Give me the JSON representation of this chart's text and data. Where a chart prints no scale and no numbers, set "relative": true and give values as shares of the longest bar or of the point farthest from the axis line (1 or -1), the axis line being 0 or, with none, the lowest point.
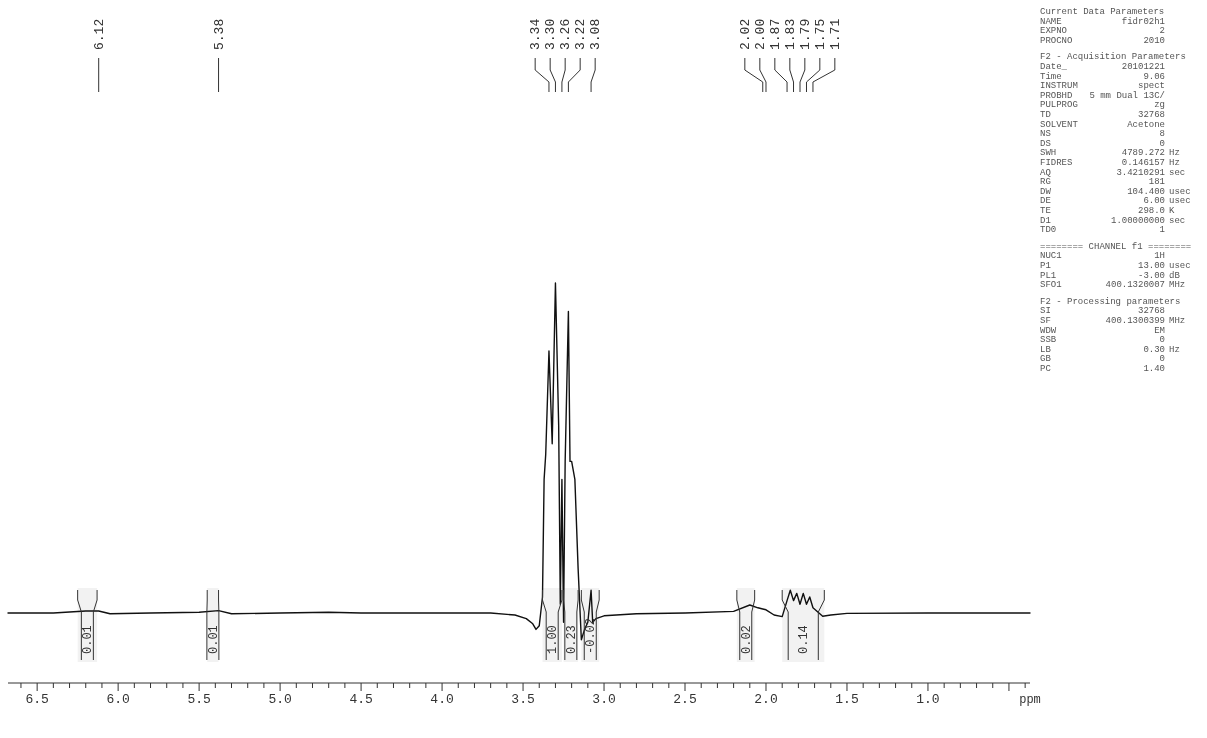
{
  "chart_data": {
    "type": "line",
    "relative": true,
    "color": "#111111",
    "xlabel": "ppm",
    "xlim": [
      6.68,
      0.37
    ],
    "xticks": [
      {
        "value": 6.5,
        "label": "6.5"
      },
      {
        "value": 6.0,
        "label": "6.0"
      },
      {
        "value": 5.5,
        "label": "5.5"
      },
      {
        "value": 5.0,
        "label": "5.0"
      },
      {
        "value": 4.5,
        "label": "4.5"
      },
      {
        "value": 4.0,
        "label": "4.0"
      },
      {
        "value": 3.5,
        "label": "3.5"
      },
      {
        "value": 3.0,
        "label": "3.0"
      },
      {
        "value": 2.5,
        "label": "2.5"
      },
      {
        "value": 2.0,
        "label": "2.0"
      },
      {
        "value": 1.5,
        "label": "1.5"
      },
      {
        "value": 1.0,
        "label": "1.0"
      },
      {
        "value": 0.5,
        "label": null
      },
      {
        "value": 6.6,
        "label": null
      },
      {
        "value": 6.4,
        "label": null
      },
      {
        "value": 6.3,
        "label": null
      },
      {
        "value": 6.2,
        "label": null
      },
      {
        "value": 6.1,
        "label": null
      },
      {
        "value": 5.9,
        "label": null
      },
      {
        "value": 5.8,
        "label": null
      },
      {
        "value": 5.7,
        "label": null
      },
      {
        "value": 5.6,
        "label": null
      },
      {
        "value": 5.4,
        "label": null
      },
      {
        "value": 5.3,
        "label": null
      },
      {
        "value": 5.2,
        "label": null
      },
      {
        "value": 5.1,
        "label": null
      },
      {
        "value": 4.9,
        "label": null
      },
      {
        "value": 4.8,
        "label": null
      },
      {
        "value": 4.7,
        "label": null
      },
      {
        "value": 4.6,
        "label": null
      },
      {
        "value": 4.4,
        "label": null
      },
      {
        "value": 4.3,
        "label": null
      },
      {
        "value": 4.2,
        "label": null
      },
      {
        "value": 4.1,
        "label": null
      },
      {
        "value": 3.9,
        "label": null
      },
      {
        "value": 3.8,
        "label": null
      },
      {
        "value": 3.7,
        "label": null
      },
      {
        "value": 3.6,
        "label": null
      },
      {
        "value": 3.4,
        "label": null
      },
      {
        "value": 3.3,
        "label": null
      },
      {
        "value": 3.2,
        "label": null
      },
      {
        "value": 3.1,
        "label": null
      },
      {
        "value": 2.9,
        "label": null
      },
      {
        "value": 2.8,
        "label": null
      },
      {
        "value": 2.7,
        "label": null
      },
      {
        "value": 2.6,
        "label": null
      },
      {
        "value": 2.4,
        "label": null
      },
      {
        "value": 2.3,
        "label": null
      },
      {
        "value": 2.2,
        "label": null
      },
      {
        "value": 2.1,
        "label": null
      },
      {
        "value": 1.9,
        "label": null
      },
      {
        "value": 1.8,
        "label": null
      },
      {
        "value": 1.7,
        "label": null
      },
      {
        "value": 1.6,
        "label": null
      },
      {
        "value": 1.4,
        "label": null
      },
      {
        "value": 1.3,
        "label": null
      },
      {
        "value": 1.2,
        "label": null
      },
      {
        "value": 1.1,
        "label": null
      },
      {
        "value": 0.9,
        "label": null
      },
      {
        "value": 0.8,
        "label": null
      },
      {
        "value": 0.7,
        "label": null
      },
      {
        "value": 0.6,
        "label": null
      },
      {
        "value": 0.4,
        "label": null
      }
    ],
    "x": [
      6.68,
      6.4,
      6.2,
      6.12,
      6.05,
      5.8,
      5.5,
      5.38,
      5.3,
      5.0,
      4.7,
      4.5,
      4.0,
      3.7,
      3.55,
      3.48,
      3.44,
      3.42,
      3.4,
      3.38,
      3.37,
      3.36,
      3.34,
      3.32,
      3.3,
      3.28,
      3.27,
      3.26,
      3.25,
      3.24,
      3.22,
      3.21,
      3.2,
      3.18,
      3.16,
      3.14,
      3.12,
      3.1,
      3.08,
      3.07,
      3.05,
      3.0,
      2.8,
      2.5,
      2.2,
      2.1,
      2.05,
      2.02,
      2.0,
      1.95,
      1.9,
      1.87,
      1.85,
      1.83,
      1.81,
      1.79,
      1.77,
      1.75,
      1.73,
      1.71,
      1.65,
      1.6,
      1.5,
      1.0,
      0.5,
      0.37
    ],
    "values": [
      0.175,
      0.175,
      0.18,
      0.18,
      0.173,
      0.175,
      0.177,
      0.181,
      0.173,
      0.175,
      0.177,
      0.175,
      0.175,
      0.175,
      0.17,
      0.161,
      0.148,
      0.134,
      0.143,
      0.215,
      0.509,
      0.572,
      0.83,
      0.598,
      1.0,
      0.643,
      0.197,
      0.509,
      0.152,
      0.554,
      0.929,
      0.554,
      0.554,
      0.509,
      0.286,
      0.108,
      0.134,
      0.152,
      0.232,
      0.152,
      0.161,
      0.168,
      0.173,
      0.175,
      0.179,
      0.195,
      0.188,
      0.185,
      0.183,
      0.17,
      0.166,
      0.206,
      0.232,
      0.206,
      0.224,
      0.197,
      0.224,
      0.197,
      0.215,
      0.188,
      0.167,
      0.17,
      0.174,
      0.175,
      0.175,
      0.175
    ],
    "bands": [
      {
        "axis": "x",
        "from": 6.25,
        "to": 6.13,
        "label": "0.01"
      },
      {
        "axis": "x",
        "from": 5.45,
        "to": 5.38,
        "label": "0.01"
      },
      {
        "axis": "x",
        "from": 3.38,
        "to": 3.26,
        "label": "1.00"
      },
      {
        "axis": "x",
        "from": 3.25,
        "to": 3.16,
        "label": "0.23"
      },
      {
        "axis": "x",
        "from": 3.14,
        "to": 3.03,
        "label": "-0.02"
      },
      {
        "axis": "x",
        "from": 2.18,
        "to": 2.07,
        "label": "0.02"
      },
      {
        "axis": "x",
        "from": 1.9,
        "to": 1.64,
        "label": "0.14"
      }
    ],
    "annotations": [
      {
        "text": "6.12",
        "x": 6.12
      },
      {
        "text": "5.38",
        "x": 5.38
      },
      {
        "text": "3.34",
        "x": 3.34
      },
      {
        "text": "3.30",
        "x": 3.3
      },
      {
        "text": "3.26",
        "x": 3.26
      },
      {
        "text": "3.22",
        "x": 3.22
      },
      {
        "text": "3.08",
        "x": 3.08
      },
      {
        "text": "2.02",
        "x": 2.02
      },
      {
        "text": "2.00",
        "x": 2.0
      },
      {
        "text": "1.87",
        "x": 1.87
      },
      {
        "text": "1.83",
        "x": 1.83
      },
      {
        "text": "1.79",
        "x": 1.79
      },
      {
        "text": "1.75",
        "x": 1.75
      },
      {
        "text": "1.71",
        "x": 1.71
      },
      "Current Data Parameters",
      "NAME\tfidr02h1",
      "EXPNO\t2",
      "PROCNO\t2010",
      "F2 - Acquisition Parameters",
      "Date_\t20101221",
      "Time\t9.06",
      "INSTRUM\tspect",
      "PROBHD\t5 mm Dual 13C/",
      "PULPROG\tzg",
      "TD\t32768",
      "SOLVENT\tAcetone",
      "NS\t8",
      "DS\t0",
      "SWH\t4789.272\tHz",
      "FIDRES\t0.146157\tHz",
      "AQ\t3.4210291\tsec",
      "RG\t181",
      "DW\t104.400\tusec",
      "DE\t6.00\tusec",
      "TE\t298.0\tK",
      "D1\t1.00000000\tsec",
      "TD0\t1",
      "======== CHANNEL f1 ========",
      "NUC1\t1H",
      "P1\t13.00\tusec",
      "PL1\t-3.00\tdB",
      "SFO1\t400.1320007\tMHz",
      "F2 - Processing parameters",
      "SI\t32768",
      "SF\t400.1300399\tMHz",
      "WDW\tEM",
      "SSB\t0",
      "LB\t0.30\tHz",
      "GB\t0",
      "PC\t1.40"
    ]
  }
}
